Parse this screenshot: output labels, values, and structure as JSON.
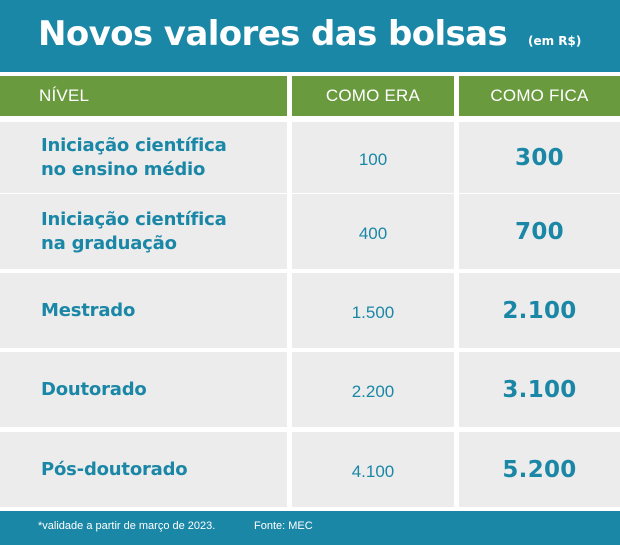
{
  "header": {
    "title": "Novos valores das bolsas",
    "unit": "(em R$)"
  },
  "colors": {
    "header_blue": "#1b87a6",
    "column_header_green": "#6a9a3e",
    "cell_gray": "#ececec",
    "text_blue": "#1b87a6"
  },
  "table": {
    "columns": [
      "NÍVEL",
      "COMO ERA",
      "COMO FICA"
    ],
    "rows": [
      {
        "nivel": "Iniciação científica\nno ensino médio",
        "como_era": "100",
        "como_fica": "300"
      },
      {
        "nivel": "Iniciação científica\nna graduação",
        "como_era": "400",
        "como_fica": "700"
      },
      {
        "nivel": "Mestrado",
        "como_era": "1.500",
        "como_fica": "2.100"
      },
      {
        "nivel": "Doutorado",
        "como_era": "2.200",
        "como_fica": "3.100"
      },
      {
        "nivel": "Pós-doutorado",
        "como_era": "4.100",
        "como_fica": "5.200"
      }
    ]
  },
  "footer": {
    "note": "*validade a partir de março de 2023.",
    "source": "Fonte: MEC"
  }
}
